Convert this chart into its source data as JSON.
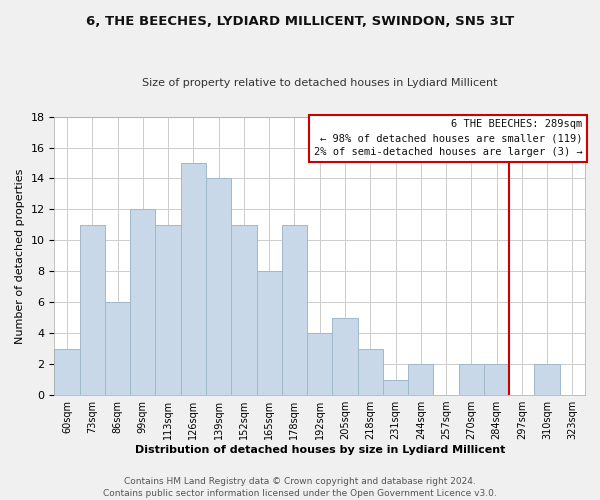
{
  "title": "6, THE BEECHES, LYDIARD MILLICENT, SWINDON, SN5 3LT",
  "subtitle": "Size of property relative to detached houses in Lydiard Millicent",
  "xlabel": "Distribution of detached houses by size in Lydiard Millicent",
  "ylabel": "Number of detached properties",
  "bar_labels": [
    "60sqm",
    "73sqm",
    "86sqm",
    "99sqm",
    "113sqm",
    "126sqm",
    "139sqm",
    "152sqm",
    "165sqm",
    "178sqm",
    "192sqm",
    "205sqm",
    "218sqm",
    "231sqm",
    "244sqm",
    "257sqm",
    "270sqm",
    "284sqm",
    "297sqm",
    "310sqm",
    "323sqm"
  ],
  "bar_values": [
    3,
    11,
    6,
    12,
    11,
    15,
    14,
    11,
    8,
    11,
    4,
    5,
    3,
    1,
    2,
    0,
    2,
    2,
    0,
    2,
    0
  ],
  "bar_color": "#c8d8e8",
  "bar_edge_color": "#a0b8cc",
  "ylim": [
    0,
    18
  ],
  "yticks": [
    0,
    2,
    4,
    6,
    8,
    10,
    12,
    14,
    16,
    18
  ],
  "vline_x": 17.5,
  "vline_color": "#cc0000",
  "annotation_line1": "6 THE BEECHES: 289sqm",
  "annotation_line2": "← 98% of detached houses are smaller (119)",
  "annotation_line3": "2% of semi-detached houses are larger (3) →",
  "annotation_box_color": "#ffffff",
  "annotation_box_edge": "#cc0000",
  "footer_line1": "Contains HM Land Registry data © Crown copyright and database right 2024.",
  "footer_line2": "Contains public sector information licensed under the Open Government Licence v3.0.",
  "background_color": "#f0f0f0",
  "plot_background": "#ffffff",
  "grid_color": "#cccccc"
}
